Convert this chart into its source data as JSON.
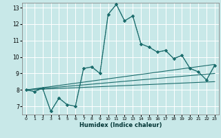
{
  "xlabel": "Humidex (Indice chaleur)",
  "xlim": [
    -0.5,
    23.5
  ],
  "ylim": [
    6.5,
    13.3
  ],
  "yticks": [
    7,
    8,
    9,
    10,
    11,
    12,
    13
  ],
  "xticks": [
    0,
    1,
    2,
    3,
    4,
    5,
    6,
    7,
    8,
    9,
    10,
    11,
    12,
    13,
    14,
    15,
    16,
    17,
    18,
    19,
    20,
    21,
    22,
    23
  ],
  "bg_color": "#c8e8e8",
  "grid_color": "#ffffff",
  "line_color": "#1a6b6b",
  "series_dotted": {
    "x": [
      0,
      1,
      2,
      3,
      4,
      5,
      6,
      7,
      8,
      9,
      10,
      11,
      12,
      13,
      14,
      15,
      16,
      17,
      18,
      19,
      20,
      21,
      22,
      23
    ],
    "y": [
      8.0,
      7.9,
      8.1,
      6.7,
      7.5,
      7.1,
      7.0,
      9.3,
      9.4,
      9.0,
      12.6,
      13.2,
      12.2,
      12.5,
      10.8,
      10.6,
      10.3,
      10.4,
      9.9,
      10.1,
      9.3,
      9.1,
      8.6,
      9.5
    ]
  },
  "series_solid": {
    "x": [
      0,
      1,
      2,
      3,
      4,
      5,
      6,
      7,
      8,
      9,
      10,
      11,
      12,
      13,
      14,
      15,
      16,
      17,
      18,
      19,
      20,
      21,
      22,
      23
    ],
    "y": [
      8.0,
      7.9,
      8.1,
      6.7,
      7.5,
      7.1,
      7.0,
      9.3,
      9.4,
      9.0,
      12.6,
      13.2,
      12.2,
      12.5,
      10.8,
      10.6,
      10.3,
      10.4,
      9.9,
      10.1,
      9.3,
      9.1,
      8.6,
      9.5
    ]
  },
  "reg_lines": [
    {
      "x": [
        0,
        23
      ],
      "y": [
        8.0,
        9.55
      ]
    },
    {
      "x": [
        0,
        23
      ],
      "y": [
        8.0,
        9.0
      ]
    },
    {
      "x": [
        0,
        23
      ],
      "y": [
        8.0,
        8.5
      ]
    }
  ]
}
